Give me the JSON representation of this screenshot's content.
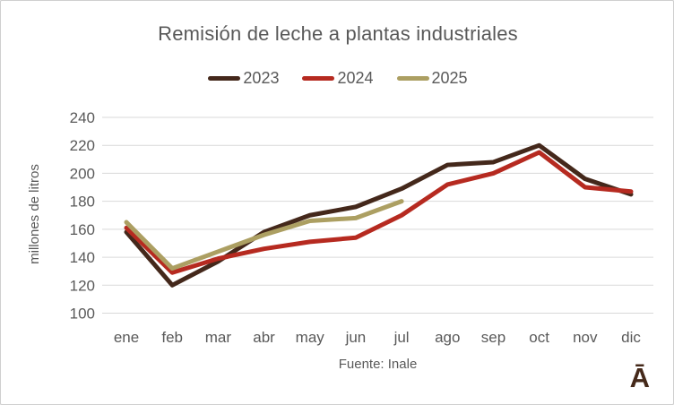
{
  "window": {
    "background": "#ffffff",
    "border_color": "#cfcfcf"
  },
  "chart_data": {
    "type": "line",
    "title": "Remisión de leche a plantas industriales",
    "ylabel": "millones de litros",
    "xlabel": "",
    "source": "Fuente: Inale",
    "categories": [
      "ene",
      "feb",
      "mar",
      "abr",
      "may",
      "jun",
      "jul",
      "ago",
      "sep",
      "oct",
      "nov",
      "dic"
    ],
    "y_ticks": [
      240,
      220,
      200,
      180,
      160,
      140,
      120,
      100
    ],
    "ylim": [
      100,
      240
    ],
    "grid": true,
    "legend_position": "top-center",
    "text_color": "#595959",
    "gridline_color": "#d9d9d9",
    "series": [
      {
        "name": "2023",
        "color": "#44281b",
        "values": [
          158,
          120,
          137,
          158,
          170,
          176,
          189,
          206,
          208,
          220,
          196,
          185
        ]
      },
      {
        "name": "2024",
        "color": "#b62a20",
        "values": [
          161,
          129,
          139,
          146,
          151,
          154,
          170,
          192,
          200,
          215,
          190,
          187
        ]
      },
      {
        "name": "2025",
        "color": "#ac9f62",
        "values": [
          165,
          132,
          144,
          156,
          166,
          168,
          180,
          null,
          null,
          null,
          null,
          null
        ]
      }
    ]
  },
  "branding": {
    "logo_glyph": "Ā",
    "logo_color": "#45291a"
  }
}
